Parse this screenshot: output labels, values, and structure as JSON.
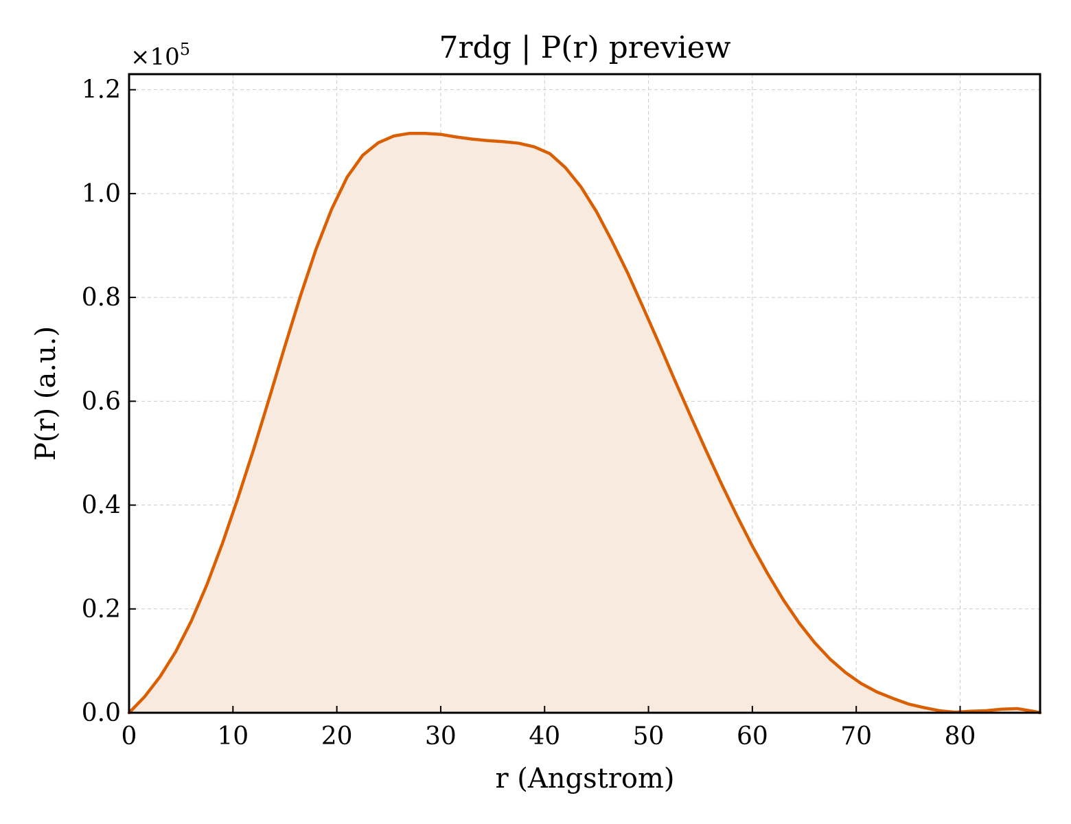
{
  "chart_data": {
    "type": "area",
    "title": "7rdg | P(r) preview",
    "xlabel": "r (Angstrom)",
    "ylabel": "P(r) (a.u.)",
    "y_offset_label": {
      "base": "×10",
      "exponent": "5"
    },
    "xlim": [
      0,
      87.7
    ],
    "ylim": [
      0,
      1.23
    ],
    "y_scale_note": "values in units of 1e5",
    "x_ticks": [
      0,
      10,
      20,
      30,
      40,
      50,
      60,
      70,
      80
    ],
    "x_tick_labels": [
      "0",
      "10",
      "20",
      "30",
      "40",
      "50",
      "60",
      "70",
      "80"
    ],
    "y_ticks": [
      0.0,
      0.2,
      0.4,
      0.6,
      0.8,
      1.0,
      1.2
    ],
    "y_tick_labels": [
      "0.0",
      "0.2",
      "0.4",
      "0.6",
      "0.8",
      "1.0",
      "1.2"
    ],
    "grid": true,
    "line_color": "#d95f02",
    "fill_color": "#f8eadf",
    "series": [
      {
        "x": [
          0,
          1.5,
          3,
          4.5,
          6,
          7.5,
          9,
          10.5,
          12,
          13.5,
          15,
          16.5,
          18,
          19.5,
          21,
          22.5,
          24,
          25.5,
          27,
          28.5,
          30,
          31.5,
          33,
          34.5,
          36,
          37.5,
          39,
          40.5,
          42,
          43.5,
          45,
          46.5,
          48,
          49.5,
          51,
          52.5,
          54,
          55.5,
          57,
          58.5,
          60,
          61.5,
          63,
          64.5,
          66,
          67.5,
          69,
          70.5,
          72,
          73.5,
          75,
          76.5,
          78,
          79.5,
          81,
          82.5,
          84,
          85.5,
          87,
          87.7
        ],
        "y": [
          0.0,
          0.031,
          0.07,
          0.118,
          0.177,
          0.247,
          0.327,
          0.415,
          0.508,
          0.606,
          0.706,
          0.803,
          0.893,
          0.97,
          1.032,
          1.074,
          1.098,
          1.111,
          1.116,
          1.116,
          1.114,
          1.109,
          1.105,
          1.102,
          1.1,
          1.097,
          1.09,
          1.077,
          1.05,
          1.013,
          0.965,
          0.908,
          0.847,
          0.78,
          0.712,
          0.642,
          0.574,
          0.507,
          0.442,
          0.38,
          0.321,
          0.267,
          0.217,
          0.173,
          0.135,
          0.103,
          0.077,
          0.056,
          0.04,
          0.028,
          0.017,
          0.01,
          0.004,
          0.001,
          0.003,
          0.004,
          0.007,
          0.008,
          0.003,
          0.0
        ]
      }
    ]
  }
}
